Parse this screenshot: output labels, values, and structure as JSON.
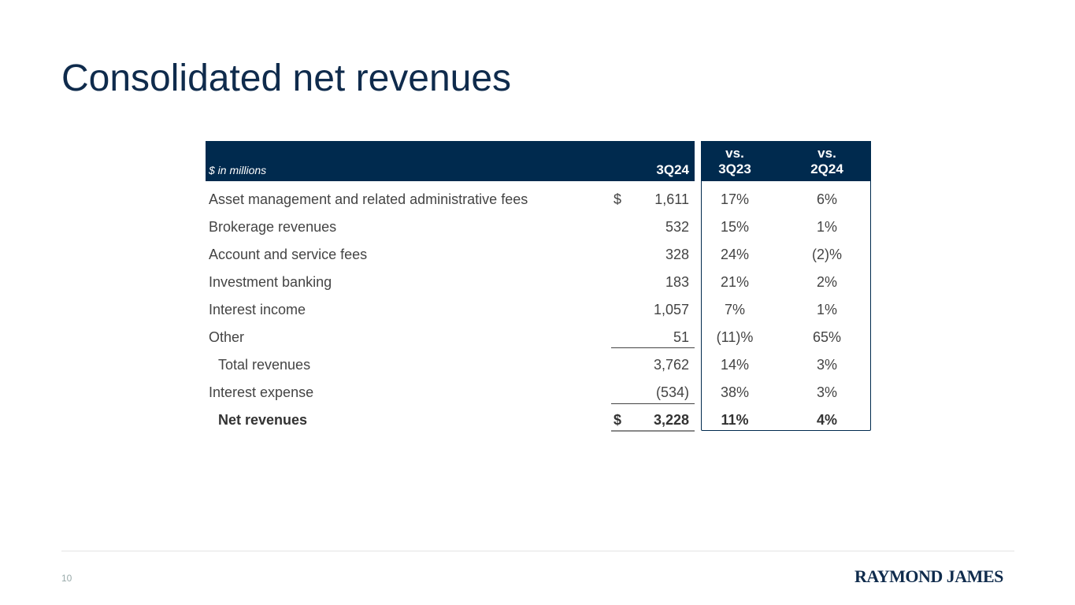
{
  "title": "Consolidated net revenues",
  "table": {
    "unit_label": "$ in millions",
    "headers": {
      "col1": "3Q24",
      "col2_line1": "vs.",
      "col2_line2": "3Q23",
      "col3_line1": "vs.",
      "col3_line2": "2Q24"
    },
    "rows": [
      {
        "label": "Asset management and related administrative fees",
        "dollar": "$",
        "value": "1,611",
        "vs3q23": "17%",
        "vs2q24": "6%"
      },
      {
        "label": "Brokerage revenues",
        "dollar": "",
        "value": "532",
        "vs3q23": "15%",
        "vs2q24": "1%"
      },
      {
        "label": "Account and service fees",
        "dollar": "",
        "value": "328",
        "vs3q23": "24%",
        "vs2q24": "(2)%"
      },
      {
        "label": "Investment banking",
        "dollar": "",
        "value": "183",
        "vs3q23": "21%",
        "vs2q24": "2%"
      },
      {
        "label": "Interest income",
        "dollar": "",
        "value": "1,057",
        "vs3q23": "7%",
        "vs2q24": "1%"
      },
      {
        "label": "Other",
        "dollar": "",
        "value": "51",
        "vs3q23": "(11)%",
        "vs2q24": "65%"
      },
      {
        "label": "Total revenues",
        "dollar": "",
        "value": "3,762",
        "vs3q23": "14%",
        "vs2q24": "3%"
      },
      {
        "label": "Interest expense",
        "dollar": "",
        "value": "(534)",
        "vs3q23": "38%",
        "vs2q24": "3%"
      },
      {
        "label": "Net revenues",
        "dollar": "$",
        "value": "3,228",
        "vs3q23": "11%",
        "vs2q24": "4%"
      }
    ]
  },
  "footer": {
    "page_number": "10",
    "logo": "RAYMOND JAMES"
  }
}
